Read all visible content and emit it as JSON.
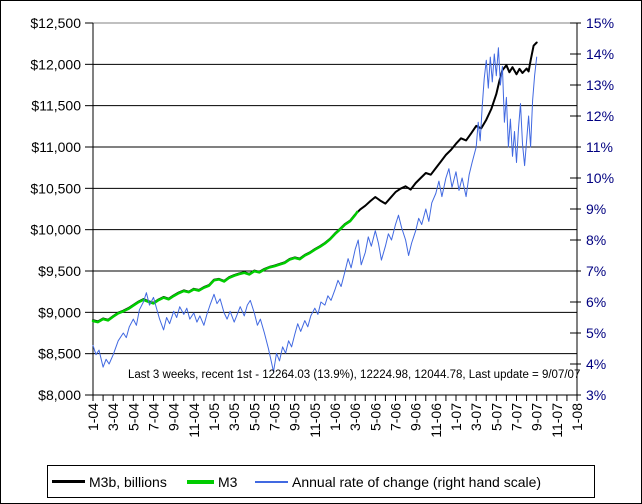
{
  "chart_data": {
    "type": "line",
    "title": "",
    "annotation": "Last 3 weeks, recent 1st - 12264.03 (13.9%), 12224.98, 12044.78, Last update = 9/07/07",
    "axes": {
      "left": {
        "min": 8000,
        "max": 12500,
        "step": 500,
        "tick_labels": [
          "$8,000",
          "$8,500",
          "$9,000",
          "$9,500",
          "$10,000",
          "$10,500",
          "$11,000",
          "$11,500",
          "$12,000",
          "$12,500"
        ],
        "label_color": "#000000"
      },
      "right": {
        "min": 3,
        "max": 15,
        "step": 1,
        "tick_labels": [
          "3%",
          "4%",
          "5%",
          "6%",
          "7%",
          "8%",
          "9%",
          "10%",
          "11%",
          "12%",
          "13%",
          "14%",
          "15%"
        ],
        "label_color": "#000080"
      },
      "x": {
        "months_total": 48,
        "minor_tick_every_months": 1,
        "label_every_months": 2,
        "tick_labels": [
          "1-04",
          "3-04",
          "5-04",
          "7-04",
          "9-04",
          "11-04",
          "1-05",
          "3-05",
          "5-05",
          "7-05",
          "9-05",
          "11-05",
          "1-06",
          "3-06",
          "5-06",
          "7-06",
          "9-06",
          "11-06",
          "1-07",
          "3-07",
          "5-07",
          "7-07",
          "9-07",
          "11-07",
          "1-08"
        ]
      }
    },
    "grid": {
      "horizontal": true,
      "vertical": false,
      "line_color": "#000000",
      "top_line_color": "#808080"
    },
    "legend_position": "bottom",
    "series": [
      {
        "id": "m3b",
        "name": "M3b, billions",
        "color": "#000000",
        "stroke_width": 2,
        "axis": "left",
        "points": [
          [
            0,
            8905
          ],
          [
            0.5,
            8890
          ],
          [
            1,
            8925
          ],
          [
            1.5,
            8910
          ],
          [
            2,
            8955
          ],
          [
            2.5,
            8995
          ],
          [
            3,
            9020
          ],
          [
            3.5,
            9050
          ],
          [
            4,
            9090
          ],
          [
            4.5,
            9130
          ],
          [
            5,
            9160
          ],
          [
            5.5,
            9135
          ],
          [
            6,
            9115
          ],
          [
            6.5,
            9155
          ],
          [
            7,
            9185
          ],
          [
            7.5,
            9165
          ],
          [
            8,
            9205
          ],
          [
            8.5,
            9240
          ],
          [
            9,
            9265
          ],
          [
            9.5,
            9250
          ],
          [
            10,
            9285
          ],
          [
            10.5,
            9270
          ],
          [
            11,
            9305
          ],
          [
            11.5,
            9330
          ],
          [
            12,
            9395
          ],
          [
            12.5,
            9405
          ],
          [
            13,
            9380
          ],
          [
            13.5,
            9425
          ],
          [
            14,
            9450
          ],
          [
            14.5,
            9470
          ],
          [
            15,
            9485
          ],
          [
            15.5,
            9465
          ],
          [
            16,
            9505
          ],
          [
            16.5,
            9490
          ],
          [
            17,
            9525
          ],
          [
            17.5,
            9550
          ],
          [
            18,
            9565
          ],
          [
            18.5,
            9585
          ],
          [
            19,
            9605
          ],
          [
            19.5,
            9645
          ],
          [
            20,
            9665
          ],
          [
            20.5,
            9650
          ],
          [
            21,
            9695
          ],
          [
            21.5,
            9725
          ],
          [
            22,
            9765
          ],
          [
            22.5,
            9800
          ],
          [
            23,
            9840
          ],
          [
            23.5,
            9890
          ],
          [
            24,
            9955
          ],
          [
            24.5,
            10010
          ],
          [
            25,
            10070
          ],
          [
            25.5,
            10110
          ],
          [
            26,
            10185
          ],
          [
            26.5,
            10245
          ],
          [
            27,
            10290
          ],
          [
            27.5,
            10345
          ],
          [
            28,
            10395
          ],
          [
            28.5,
            10350
          ],
          [
            29,
            10315
          ],
          [
            29.5,
            10385
          ],
          [
            30,
            10455
          ],
          [
            30.5,
            10495
          ],
          [
            31,
            10525
          ],
          [
            31.5,
            10485
          ],
          [
            32,
            10565
          ],
          [
            32.5,
            10625
          ],
          [
            33,
            10685
          ],
          [
            33.5,
            10665
          ],
          [
            34,
            10745
          ],
          [
            34.5,
            10825
          ],
          [
            35,
            10905
          ],
          [
            35.5,
            10965
          ],
          [
            36,
            11040
          ],
          [
            36.5,
            11105
          ],
          [
            37,
            11080
          ],
          [
            37.5,
            11165
          ],
          [
            38,
            11255
          ],
          [
            38.5,
            11225
          ],
          [
            39,
            11330
          ],
          [
            39.5,
            11460
          ],
          [
            40,
            11640
          ],
          [
            40.3,
            11800
          ],
          [
            40.6,
            11930
          ],
          [
            41,
            11990
          ],
          [
            41.3,
            11905
          ],
          [
            41.6,
            11965
          ],
          [
            42,
            11880
          ],
          [
            42.3,
            11945
          ],
          [
            42.6,
            11895
          ],
          [
            43,
            11950
          ],
          [
            43.2,
            11915
          ],
          [
            43.4,
            12045
          ],
          [
            43.7,
            12225
          ],
          [
            44,
            12264
          ]
        ]
      },
      {
        "id": "m3",
        "name": "M3",
        "color": "#00CC00",
        "stroke_width": 2.5,
        "axis": "left",
        "points": [
          [
            0,
            8895
          ],
          [
            0.5,
            8882
          ],
          [
            1,
            8918
          ],
          [
            1.5,
            8902
          ],
          [
            2,
            8948
          ],
          [
            2.5,
            8988
          ],
          [
            3,
            9012
          ],
          [
            3.5,
            9042
          ],
          [
            4,
            9082
          ],
          [
            4.5,
            9122
          ],
          [
            5,
            9152
          ],
          [
            5.5,
            9128
          ],
          [
            6,
            9108
          ],
          [
            6.5,
            9148
          ],
          [
            7,
            9178
          ],
          [
            7.5,
            9158
          ],
          [
            8,
            9198
          ],
          [
            8.5,
            9232
          ],
          [
            9,
            9258
          ],
          [
            9.5,
            9243
          ],
          [
            10,
            9278
          ],
          [
            10.5,
            9263
          ],
          [
            11,
            9298
          ],
          [
            11.5,
            9322
          ],
          [
            12,
            9388
          ],
          [
            12.5,
            9398
          ],
          [
            13,
            9373
          ],
          [
            13.5,
            9418
          ],
          [
            14,
            9443
          ],
          [
            14.5,
            9463
          ],
          [
            15,
            9478
          ],
          [
            15.5,
            9458
          ],
          [
            16,
            9498
          ],
          [
            16.5,
            9483
          ],
          [
            17,
            9518
          ],
          [
            17.5,
            9543
          ],
          [
            18,
            9558
          ],
          [
            18.5,
            9578
          ],
          [
            19,
            9598
          ],
          [
            19.5,
            9638
          ],
          [
            20,
            9658
          ],
          [
            20.5,
            9643
          ],
          [
            21,
            9688
          ],
          [
            21.5,
            9718
          ],
          [
            22,
            9758
          ],
          [
            22.5,
            9793
          ],
          [
            23,
            9833
          ],
          [
            23.5,
            9883
          ],
          [
            24,
            9948
          ],
          [
            24.5,
            10003
          ],
          [
            25,
            10063
          ],
          [
            25.5,
            10103
          ],
          [
            26,
            10178
          ],
          [
            26.2,
            10215
          ]
        ]
      },
      {
        "id": "rate",
        "name": "Annual rate of change (right hand scale)",
        "color": "#4169E1",
        "stroke_width": 1,
        "axis": "right",
        "points": [
          [
            0,
            4.6
          ],
          [
            0.3,
            4.3
          ],
          [
            0.6,
            4.45
          ],
          [
            1,
            3.9
          ],
          [
            1.3,
            4.15
          ],
          [
            1.6,
            4.0
          ],
          [
            2,
            4.3
          ],
          [
            2.5,
            4.75
          ],
          [
            3,
            5.0
          ],
          [
            3.3,
            4.85
          ],
          [
            3.6,
            5.2
          ],
          [
            4,
            5.45
          ],
          [
            4.3,
            5.25
          ],
          [
            4.6,
            5.75
          ],
          [
            5,
            6.0
          ],
          [
            5.3,
            6.3
          ],
          [
            5.6,
            5.9
          ],
          [
            6,
            6.15
          ],
          [
            6.3,
            5.8
          ],
          [
            6.6,
            5.45
          ],
          [
            7,
            5.1
          ],
          [
            7.3,
            5.5
          ],
          [
            7.6,
            5.3
          ],
          [
            8,
            5.7
          ],
          [
            8.3,
            5.5
          ],
          [
            8.6,
            5.85
          ],
          [
            9,
            5.6
          ],
          [
            9.3,
            5.8
          ],
          [
            9.6,
            5.45
          ],
          [
            10,
            5.65
          ],
          [
            10.3,
            5.35
          ],
          [
            10.6,
            5.55
          ],
          [
            11,
            5.25
          ],
          [
            11.3,
            5.6
          ],
          [
            11.6,
            5.9
          ],
          [
            12,
            6.25
          ],
          [
            12.3,
            5.95
          ],
          [
            12.6,
            6.1
          ],
          [
            13,
            5.65
          ],
          [
            13.3,
            5.45
          ],
          [
            13.6,
            5.7
          ],
          [
            14,
            5.35
          ],
          [
            14.3,
            5.6
          ],
          [
            14.6,
            5.85
          ],
          [
            15,
            5.55
          ],
          [
            15.3,
            5.9
          ],
          [
            15.6,
            6.05
          ],
          [
            16,
            5.65
          ],
          [
            16.3,
            5.25
          ],
          [
            16.6,
            5.45
          ],
          [
            17,
            5.0
          ],
          [
            17.4,
            4.5
          ],
          [
            17.7,
            4.05
          ],
          [
            17.9,
            3.75
          ],
          [
            18.2,
            4.35
          ],
          [
            18.5,
            4.1
          ],
          [
            18.8,
            4.55
          ],
          [
            19.1,
            4.35
          ],
          [
            19.4,
            4.75
          ],
          [
            19.7,
            4.55
          ],
          [
            20,
            4.95
          ],
          [
            20.3,
            5.3
          ],
          [
            20.6,
            5.05
          ],
          [
            21,
            5.4
          ],
          [
            21.3,
            5.2
          ],
          [
            21.6,
            5.55
          ],
          [
            22,
            5.8
          ],
          [
            22.3,
            5.6
          ],
          [
            22.6,
            6.0
          ],
          [
            23,
            5.9
          ],
          [
            23.3,
            6.2
          ],
          [
            23.6,
            6.05
          ],
          [
            24,
            6.4
          ],
          [
            24.3,
            6.7
          ],
          [
            24.6,
            6.5
          ],
          [
            25,
            7.0
          ],
          [
            25.3,
            7.4
          ],
          [
            25.6,
            7.1
          ],
          [
            26,
            7.7
          ],
          [
            26.3,
            8.0
          ],
          [
            26.6,
            7.2
          ],
          [
            27,
            7.6
          ],
          [
            27.3,
            8.1
          ],
          [
            27.6,
            7.8
          ],
          [
            28,
            8.3
          ],
          [
            28.3,
            7.9
          ],
          [
            28.6,
            7.35
          ],
          [
            29,
            7.8
          ],
          [
            29.3,
            8.2
          ],
          [
            29.6,
            8.0
          ],
          [
            30,
            8.5
          ],
          [
            30.3,
            8.8
          ],
          [
            30.6,
            8.4
          ],
          [
            31,
            8.0
          ],
          [
            31.3,
            7.5
          ],
          [
            31.6,
            7.9
          ],
          [
            32,
            8.3
          ],
          [
            32.3,
            8.7
          ],
          [
            32.6,
            8.5
          ],
          [
            33,
            9.0
          ],
          [
            33.3,
            8.6
          ],
          [
            33.6,
            9.2
          ],
          [
            34,
            9.5
          ],
          [
            34.3,
            9.9
          ],
          [
            34.6,
            9.4
          ],
          [
            35,
            10.0
          ],
          [
            35.3,
            10.3
          ],
          [
            35.6,
            9.7
          ],
          [
            36,
            10.2
          ],
          [
            36.3,
            9.6
          ],
          [
            36.6,
            10.0
          ],
          [
            37,
            9.4
          ],
          [
            37.3,
            10.1
          ],
          [
            37.6,
            10.5
          ],
          [
            38,
            11.0
          ],
          [
            38.2,
            11.8
          ],
          [
            38.4,
            11.2
          ],
          [
            38.6,
            12.3
          ],
          [
            38.8,
            13.2
          ],
          [
            39,
            13.8
          ],
          [
            39.2,
            12.9
          ],
          [
            39.4,
            13.9
          ],
          [
            39.6,
            13.1
          ],
          [
            39.8,
            14.0
          ],
          [
            40,
            13.3
          ],
          [
            40.2,
            14.2
          ],
          [
            40.4,
            13.0
          ],
          [
            40.6,
            13.6
          ],
          [
            40.8,
            11.8
          ],
          [
            41,
            12.6
          ],
          [
            41.2,
            11.0
          ],
          [
            41.4,
            11.9
          ],
          [
            41.6,
            10.7
          ],
          [
            41.8,
            11.5
          ],
          [
            42,
            10.5
          ],
          [
            42.2,
            11.6
          ],
          [
            42.4,
            12.4
          ],
          [
            42.6,
            11.1
          ],
          [
            42.8,
            10.4
          ],
          [
            43,
            11.2
          ],
          [
            43.2,
            12.0
          ],
          [
            43.4,
            11.0
          ],
          [
            43.6,
            12.5
          ],
          [
            43.8,
            13.3
          ],
          [
            44,
            13.9
          ]
        ]
      }
    ]
  }
}
